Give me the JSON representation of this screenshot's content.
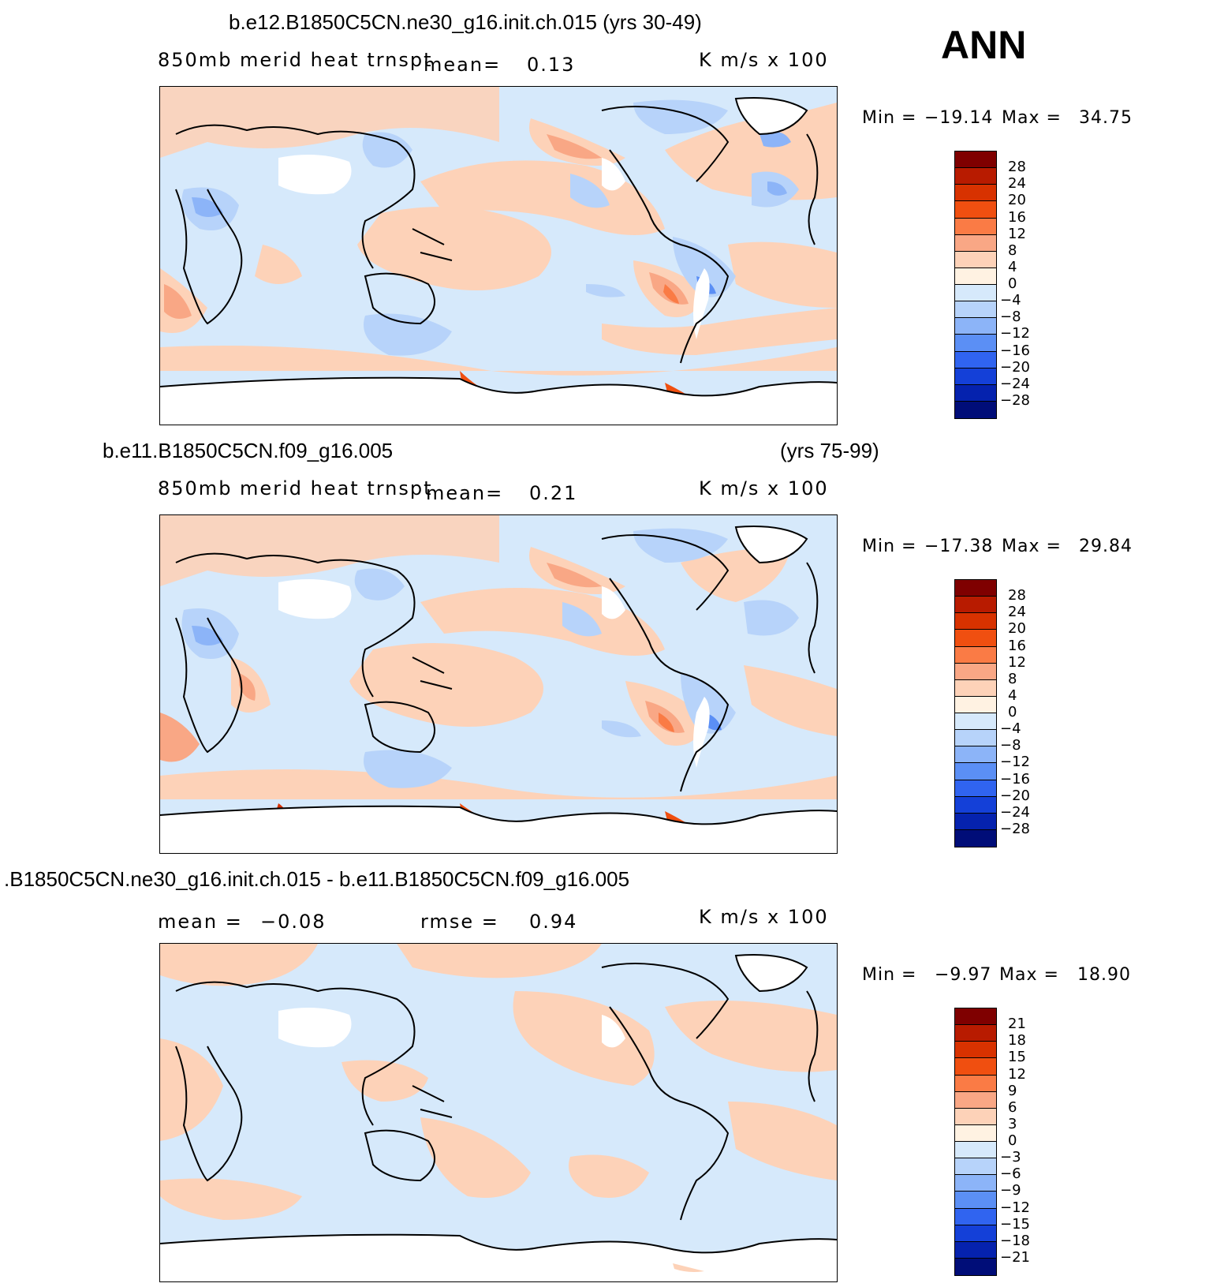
{
  "season": "ANN",
  "panels": [
    {
      "title_left": "b.e12.B1850C5CN.ne30_g16.init.ch.015 (yrs 30-49)",
      "title_right": "",
      "field": "850mb merid heat trnspt",
      "stat1_label": "mean=",
      "stat1_value": "0.13",
      "stat2_label": "",
      "stat2_value": "",
      "units": "K m/s x 100",
      "min_label": "Min =",
      "min_value": "−19.14",
      "max_label": "Max =",
      "max_value": "34.75",
      "levels": [
        "28",
        "24",
        "20",
        "16",
        "12",
        "8",
        "4",
        "0",
        "−4",
        "−8",
        "−12",
        "−16",
        "−20",
        "−24",
        "−28"
      ]
    },
    {
      "title_left": "b.e11.B1850C5CN.f09_g16.005",
      "title_right": "(yrs 75-99)",
      "field": "850mb merid heat trnspt",
      "stat1_label": "mean=",
      "stat1_value": "0.21",
      "stat2_label": "",
      "stat2_value": "",
      "units": "K m/s x 100",
      "min_label": "Min =",
      "min_value": "−17.38",
      "max_label": "Max =",
      "max_value": "29.84",
      "levels": [
        "28",
        "24",
        "20",
        "16",
        "12",
        "8",
        "4",
        "0",
        "−4",
        "−8",
        "−12",
        "−16",
        "−20",
        "−24",
        "−28"
      ]
    },
    {
      "title_left": ".B1850C5CN.ne30_g16.init.ch.015 - b.e11.B1850C5CN.f09_g16.005",
      "title_right": "",
      "field": "",
      "stat1_label": "mean =",
      "stat1_value": "−0.08",
      "stat2_label": "rmse =",
      "stat2_value": "0.94",
      "units": "K m/s x 100",
      "min_label": "Min =",
      "min_value": "−9.97",
      "max_label": "Max =",
      "max_value": "18.90",
      "levels": [
        "21",
        "18",
        "15",
        "12",
        "9",
        "6",
        "3",
        "0",
        "−3",
        "−6",
        "−9",
        "−12",
        "−15",
        "−18",
        "−21"
      ]
    }
  ],
  "colors": {
    "colorbar": [
      "#7f0000",
      "#b81b00",
      "#d83200",
      "#f04f10",
      "#fa7b45",
      "#f9a785",
      "#fdd2b8",
      "#fff2e2",
      "#d6e9fb",
      "#b7d3fa",
      "#8cb4f8",
      "#5b8ff5",
      "#3064f0",
      "#1440d8",
      "#0522ae",
      "#000d78"
    ],
    "land_outline": "#000000",
    "no_data": "#ffffff"
  }
}
